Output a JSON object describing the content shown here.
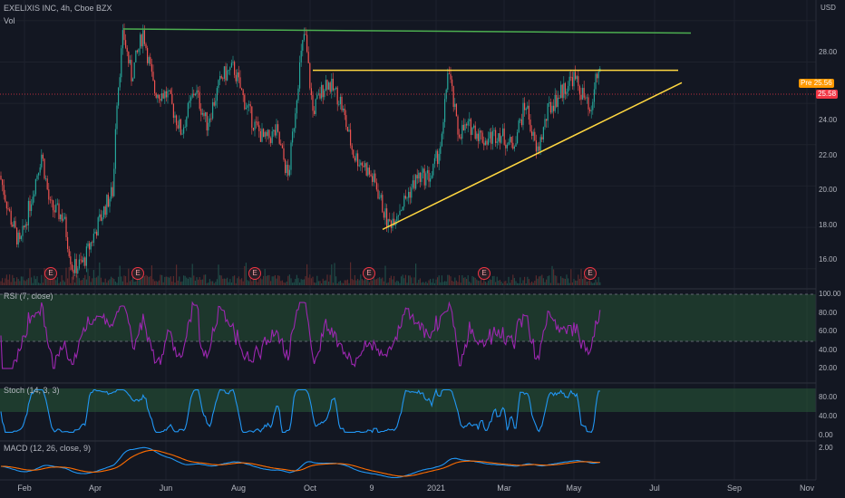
{
  "header": {
    "symbol_line": "EXELIXIS INC, 4h, Cboe BZX",
    "vol_label": "Vol",
    "currency": "USD"
  },
  "price_axis": {
    "labels": [
      "28.00",
      "26.00",
      "24.00",
      "22.00",
      "20.00",
      "18.00",
      "16.00"
    ],
    "values": [
      28,
      26,
      24,
      22,
      20,
      18,
      16
    ]
  },
  "price_tags": {
    "pre_label": "Pre",
    "pre_value": "25.56",
    "last_value": "25.58",
    "colors": {
      "pre": "#ff9800",
      "last": "#f23645"
    }
  },
  "x_axis": {
    "labels": [
      "Feb",
      "Apr",
      "Jun",
      "Aug",
      "Oct",
      "9",
      "2021",
      "Mar",
      "May",
      "Jul",
      "Sep",
      "Nov"
    ]
  },
  "earnings": {
    "marker": "E",
    "count": 6
  },
  "rsi": {
    "title": "RSI (7, close)",
    "axis_labels": [
      "100.00",
      "80.00",
      "60.00",
      "40.00",
      "20.00"
    ],
    "color": "#9c27b0"
  },
  "stoch": {
    "title": "Stoch (14, 3, 3)",
    "axis_labels": [
      "80.00",
      "40.00",
      "0.00"
    ],
    "color": "#2196f3"
  },
  "macd": {
    "title": "MACD (12, 26, close, 9)",
    "axis_labels": [
      "2.00"
    ],
    "colors": {
      "macd": "#2196f3",
      "signal": "#ff6d00"
    }
  },
  "drawings": {
    "resistance_green": {
      "color": "#4caf50",
      "from_price": 27.6,
      "to_price": 27.4
    },
    "resistance_yellow": {
      "color": "#ffd740",
      "price": 25.6
    },
    "support_trend": {
      "color": "#ffd740",
      "from_price": 17.9,
      "to_price": 25.0
    }
  },
  "chart_data": {
    "type": "candlestick",
    "timeframe": "4h",
    "ylim": [
      15.2,
      29
    ],
    "series_shape": [
      [
        0,
        20.5
      ],
      [
        12,
        18.4
      ],
      [
        22,
        17.1
      ],
      [
        35,
        19.5
      ],
      [
        46,
        21.6
      ],
      [
        55,
        19.0
      ],
      [
        70,
        18.5
      ],
      [
        80,
        16.0
      ],
      [
        92,
        16.3
      ],
      [
        105,
        17.8
      ],
      [
        118,
        19.2
      ],
      [
        125,
        19.8
      ],
      [
        128,
        23.8
      ],
      [
        136,
        27.4
      ],
      [
        145,
        25.3
      ],
      [
        158,
        27.5
      ],
      [
        170,
        24.6
      ],
      [
        185,
        24.4
      ],
      [
        200,
        22.6
      ],
      [
        215,
        24.7
      ],
      [
        228,
        23.0
      ],
      [
        245,
        25.3
      ],
      [
        258,
        25.7
      ],
      [
        268,
        24.3
      ],
      [
        280,
        23.0
      ],
      [
        292,
        22.2
      ],
      [
        305,
        22.6
      ],
      [
        318,
        20.4
      ],
      [
        330,
        25.6
      ],
      [
        336,
        27.5
      ],
      [
        345,
        23.6
      ],
      [
        360,
        25.1
      ],
      [
        375,
        24.2
      ],
      [
        390,
        21.5
      ],
      [
        402,
        21.0
      ],
      [
        415,
        20.0
      ],
      [
        428,
        18.1
      ],
      [
        445,
        19.2
      ],
      [
        460,
        20.4
      ],
      [
        476,
        20.5
      ],
      [
        488,
        22.3
      ],
      [
        494,
        25.8
      ],
      [
        505,
        22.6
      ],
      [
        520,
        22.9
      ],
      [
        535,
        22.2
      ],
      [
        550,
        22.6
      ],
      [
        565,
        21.9
      ],
      [
        580,
        24.0
      ],
      [
        592,
        21.5
      ],
      [
        605,
        23.7
      ],
      [
        620,
        24.6
      ],
      [
        632,
        25.3
      ],
      [
        645,
        24.2
      ],
      [
        652,
        23.2
      ],
      [
        656,
        25.1
      ],
      [
        662,
        25.6
      ]
    ]
  }
}
